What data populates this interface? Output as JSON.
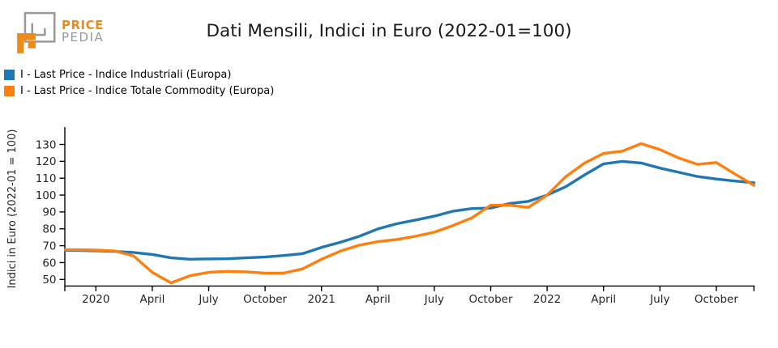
{
  "brand": {
    "name_top": "PRICE",
    "name_bottom": "PEDIA",
    "orange": "#EE8B18",
    "gray": "#97999B"
  },
  "title": "Dati Mensili, Indici in Euro (2022-01=100)",
  "legend": [
    {
      "label": "I - Last Price - Indice Industriali (Europa)",
      "color": "#1f77b4"
    },
    {
      "label": "I - Last Price - Indice Totale Commodity (Europa)",
      "color": "#ff7f0e"
    }
  ],
  "chart_data": {
    "type": "line",
    "title": "Dati Mensili, Indici in Euro (2022-01=100)",
    "xlabel": "",
    "ylabel": "Indici in Euro (2022-01 = 100)",
    "ylim": [
      46.4,
      134
    ],
    "xlim": [
      "2019-11",
      "2022-12"
    ],
    "grid": false,
    "legend_position": "top-left",
    "axis_color": "#000000",
    "tick_color": "#262626",
    "yticks": [
      50,
      60,
      70,
      80,
      90,
      100,
      110,
      120,
      130
    ],
    "xticks": [
      {
        "m": 2,
        "label": "2020"
      },
      {
        "m": 5,
        "label": "April"
      },
      {
        "m": 8,
        "label": "July"
      },
      {
        "m": 11,
        "label": "October"
      },
      {
        "m": 14,
        "label": "2021"
      },
      {
        "m": 17,
        "label": "April"
      },
      {
        "m": 20,
        "label": "July"
      },
      {
        "m": 23,
        "label": "October"
      },
      {
        "m": 26,
        "label": "2022"
      },
      {
        "m": 29,
        "label": "April"
      },
      {
        "m": 32,
        "label": "July"
      },
      {
        "m": 35,
        "label": "October"
      }
    ],
    "x": [
      "2019-11",
      "2019-12",
      "2020-01",
      "2020-02",
      "2020-03",
      "2020-04",
      "2020-05",
      "2020-06",
      "2020-07",
      "2020-08",
      "2020-09",
      "2020-10",
      "2020-11",
      "2020-12",
      "2021-01",
      "2021-02",
      "2021-03",
      "2021-04",
      "2021-05",
      "2021-06",
      "2021-07",
      "2021-08",
      "2021-09",
      "2021-10",
      "2021-11",
      "2021-12",
      "2022-01",
      "2022-02",
      "2022-03",
      "2022-04",
      "2022-05",
      "2022-06",
      "2022-07",
      "2022-08",
      "2022-09",
      "2022-10",
      "2022-11",
      "2022-12"
    ],
    "series": [
      {
        "name": "I - Last Price - Indice Industriali (Europa)",
        "color": "#1f77b4",
        "values": [
          67.3,
          67.2,
          67.0,
          66.6,
          66.0,
          64.8,
          62.8,
          62.0,
          62.2,
          62.3,
          62.8,
          63.3,
          64.2,
          65.3,
          69.0,
          72.0,
          75.5,
          80.0,
          83.0,
          85.2,
          87.5,
          90.5,
          92.0,
          92.3,
          95.0,
          96.3,
          100.0,
          105.0,
          112.0,
          118.5,
          120.0,
          119.0,
          116.0,
          113.5,
          111.0,
          109.5,
          108.3,
          107.3
        ]
      },
      {
        "name": "I - Last Price - Indice Totale Commodity (Europa)",
        "color": "#ff7f0e",
        "values": [
          67.6,
          67.6,
          67.4,
          66.9,
          64.0,
          54.2,
          48.0,
          52.2,
          54.2,
          54.8,
          54.5,
          53.8,
          53.8,
          56.3,
          62.0,
          66.8,
          70.3,
          72.4,
          73.7,
          75.6,
          78.0,
          82.0,
          86.5,
          94.0,
          94.0,
          92.7,
          100.0,
          111.0,
          119.0,
          124.7,
          126.0,
          130.5,
          127.0,
          122.0,
          118.2,
          119.3,
          112.4,
          105.8
        ]
      }
    ]
  }
}
